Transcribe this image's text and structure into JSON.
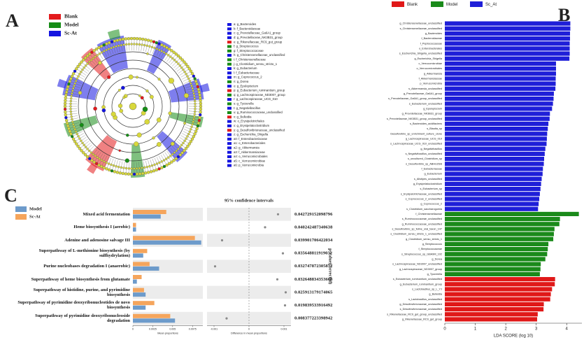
{
  "chart_data": [
    {
      "type": "cladogram",
      "panel": "A",
      "series": [
        {
          "name": "Blank",
          "color": "#e31a1c"
        },
        {
          "name": "Model",
          "color": "#168c16"
        },
        {
          "name": "Sc-At",
          "color": "#1414e0"
        }
      ],
      "taxa": [
        {
          "label": "a: g_Bacteroides",
          "color": "#1414e0"
        },
        {
          "label": "b: f_Bacteroidaceae",
          "color": "#1414e0"
        },
        {
          "label": "c: g_Prevotellaceae_Ga6A1_group",
          "color": "#1414e0"
        },
        {
          "label": "d: g_Prevotellaceae_NK3B31_group",
          "color": "#1414e0"
        },
        {
          "label": "e: g_Rikenellaceae_RC9_gut_group",
          "color": "#e31a1c"
        },
        {
          "label": "f: g_Streptococcus",
          "color": "#168c16"
        },
        {
          "label": "g: f_Streptococcaceae",
          "color": "#168c16"
        },
        {
          "label": "h: g_Christensenellaceae_unclassified",
          "color": "#1414e0"
        },
        {
          "label": "i: f_Christensenellaceae",
          "color": "#168c16"
        },
        {
          "label": "j: g_Clostridium_sensu_stricto_1",
          "color": "#168c16"
        },
        {
          "label": "k: g_Eubacterium",
          "color": "#1414e0"
        },
        {
          "label": "l: f_Eubacteriaceae",
          "color": "#1414e0"
        },
        {
          "label": "m: g_Coprococcus_2",
          "color": "#1414e0"
        },
        {
          "label": "n: g_Dorea",
          "color": "#168c16"
        },
        {
          "label": "o: g_Epulopiscium",
          "color": "#1414e0"
        },
        {
          "label": "p: g_Eubacterium_ruminantium_group",
          "color": "#e31a1c"
        },
        {
          "label": "q: g_Lachnospiraceae_ND3007_group",
          "color": "#168c16"
        },
        {
          "label": "r: g_Lachnospiraceae_UCG_010",
          "color": "#1414e0"
        },
        {
          "label": "s: g_Tyzzerella",
          "color": "#168c16"
        },
        {
          "label": "t: g_Negativibacillus",
          "color": "#1414e0"
        },
        {
          "label": "u: g_Ruminococcaceae_unclassified",
          "color": "#168c16"
        },
        {
          "label": "v: g_Bulleidia",
          "color": "#e31a1c"
        },
        {
          "label": "w: o_Erysipelotrichales",
          "color": "#1414e0"
        },
        {
          "label": "x: g_Erysipelatoclostridium",
          "color": "#1414e0"
        },
        {
          "label": "y: g_Desulfovibrionaceae_unclassified",
          "color": "#e31a1c"
        },
        {
          "label": "z: g_Escherichia_Shigella",
          "color": "#1414e0"
        },
        {
          "label": "a0: f_Enterobacteriaceae",
          "color": "#1414e0"
        },
        {
          "label": "a1: o_Enterobacteriales",
          "color": "#1414e0"
        },
        {
          "label": "a2: g_Akkermansia",
          "color": "#1414e0"
        },
        {
          "label": "a3: f_Akkermansiaceae",
          "color": "#1414e0"
        },
        {
          "label": "a4: o_Verrucomicrobiales",
          "color": "#1414e0"
        },
        {
          "label": "a5: c_Verrucomicrobiae",
          "color": "#1414e0"
        },
        {
          "label": "a6: p_Verrucomicrobia",
          "color": "#1414e0"
        }
      ]
    },
    {
      "type": "lda",
      "panel": "B",
      "xlabel": "LDA SCORE (log 10)",
      "xlim": [
        0,
        4.5
      ],
      "xticks": [
        0,
        1,
        2,
        3,
        4
      ],
      "series": [
        {
          "name": "Sc_At",
          "color": "#1f1fd8",
          "categories": [
            "g_Christensenellaceae_unclassified",
            "s_Christensenellaceae_unclassified",
            "g_Bacteroides",
            "f_Bacteroidaceae",
            "f_Peptococcaceae",
            "o_Enterobacterales",
            "s_Escherichia_Shigella_unclassified",
            "g_Escherichia_Shigella",
            "c_Verrucomicrobiae",
            "o_Verrucomicrobiales",
            "g_Akkermansia",
            "f_Akkermansiaceae",
            "p_Verrucomicrobia",
            "s_Akkermansia_unclassified",
            "g_Prevotellaceae_Ga6A1_group",
            "s_Prevotellaceae_Ga6A1_group_unclassified",
            "s_Eubacterium_unclassified",
            "g_Epulopiscium",
            "g_Prevotellaceae_NK3B31_group",
            "s_Prevotellaceae_NK3B31_group_unclassified",
            "s_Bacteroides_acidifaciens",
            "s_Blautia_sp",
            "Desulfovibrio_sp_enrichment_culture_clone",
            "g_Lachnospiraceae_UCG_010",
            "s_Lachnospiraceae_UCG_010_unclassified",
            "g_Negativibacillus",
            "s_Negativibacillus_unclassified",
            "s_uncultured_Clostridium_sp",
            "s_Desulfovibrio_sp_ABHU2SB",
            "f_Eubacteriaceae",
            "g_Eubacterium",
            "s_Alistipes_unclassified",
            "g_Erysipelatoclostridium",
            "s_Eubacterium_sp",
            "s_Erysipelotrichaceae_unclassified",
            "s_Coprococcus_2_unclassified",
            "g_Coprococcus_2",
            "s_Clostridium_saccharogumia"
          ],
          "values": [
            4.12,
            4.12,
            4.11,
            4.11,
            4.1,
            4.1,
            4.1,
            4.09,
            3.65,
            3.65,
            3.65,
            3.64,
            3.64,
            3.63,
            3.58,
            3.57,
            3.55,
            3.52,
            3.45,
            3.44,
            3.4,
            3.38,
            3.36,
            3.35,
            3.34,
            3.3,
            3.28,
            3.26,
            3.25,
            3.22,
            3.21,
            3.18,
            3.16,
            3.14,
            3.12,
            3.1,
            3.08,
            3.06
          ]
        },
        {
          "name": "Model",
          "color": "#1a8a1a",
          "categories": [
            "f_Christensenellaceae",
            "s_Ruminococcaceae_unclassified",
            "g_Ruminococcaceae_unclassified",
            "s_Desulfovibrio_sp_feline_oral_taxon_147",
            "s_Clostridium_sensu_stricto_1_unclassified",
            "g_Clostridium_sensu_stricto_1",
            "g_Streptococcus",
            "f_Streptococcaceae",
            "s_Streptococcus_sp_GBA9M_102",
            "g_Dorea",
            "s_Lachnospiraceae_ND3007_unclassified",
            "g_Lachnospiraceae_ND3007_group",
            "g_Tyzzerella"
          ],
          "values": [
            4.4,
            3.78,
            3.76,
            3.6,
            3.58,
            3.56,
            3.4,
            3.38,
            3.36,
            3.3,
            3.15,
            3.14,
            3.12
          ]
        },
        {
          "name": "Blank",
          "color": "#e01818",
          "categories": [
            "s_Eubacterium_ruminantium_unclassified",
            "g_Eubacterium_ruminantium_group",
            "s_Lactobacillus_sp_L_YJ",
            "g_Bulleidia",
            "s_Lactobacillus_unclassified",
            "g_Desulfovibrionaceae_unclassified",
            "s_Desulfovibrionaceae_unclassified",
            "s_Rikenellaceae_RC9_gut_group_unclassified",
            "g_Rikenellaceae_RC9_gut_group"
          ],
          "values": [
            3.62,
            3.61,
            3.52,
            3.48,
            3.46,
            3.25,
            3.24,
            3.05,
            3.03
          ]
        }
      ]
    },
    {
      "type": "extended_error_bar",
      "panel": "C",
      "title": "95% confidence intervals",
      "xlabel": "Mean proportions",
      "diff_xlabel": "Difference in mean proportions",
      "p_label": "p-value(corrected)",
      "categories": [
        "Mixed acid fermentation",
        "Heme biosynthesis I (aerobic)",
        "Adenine and adenosine salvage III",
        "Superpathway of L-methionine biosynthesis (by sulfhydrylation)",
        "Purine nucleobases degradation I (anaerobic)",
        "Superpathway of heme biosynthesis from glutamate",
        "Superpathway of histidine, purine, and pyrimidine biosynthesis",
        "Superpathway of pyrimidine deoxyribonucleotides de novo biosynthesis",
        "Superpathway of pyrimidine deoxyribonucleoside degradation"
      ],
      "series": [
        {
          "name": "Model",
          "color": "#6d9bcb",
          "values": [
            0.0035,
            0.0004,
            0.0086,
            0.0013,
            0.0033,
            0.0005,
            0.0016,
            0.0016,
            0.0053
          ]
        },
        {
          "name": "Sc-At",
          "color": "#f5a55c",
          "values": [
            0.0042,
            0.0004,
            0.0078,
            0.0018,
            0.0021,
            0.0011,
            0.0014,
            0.0027,
            0.0047
          ]
        }
      ],
      "differences": [
        0.00083,
        0.00046,
        -0.00077,
        0.00097,
        -0.00097,
        0.00081,
        0.00105,
        0.00103,
        -0.00064
      ],
      "p_values": [
        0.042729152098796,
        0.040242487340638,
        0.039901706422034,
        0.035648811919032,
        0.032747872305872,
        0.032648834353668,
        0.025913179174065,
        0.019839533916492,
        0.008377223398942
      ],
      "xlim": [
        0,
        0.0088
      ],
      "xticks": [
        0,
        0.0025,
        0.005,
        0.0075
      ],
      "diff_xlim": [
        -0.0012,
        0.0012
      ],
      "diff_xticks": [
        -0.001,
        0,
        0.001
      ]
    }
  ]
}
